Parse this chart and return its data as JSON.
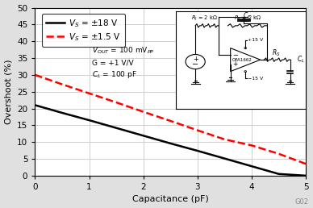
{
  "xlabel": "Capacitance (pF)",
  "ylabel": "Overshoot (%)",
  "xlim": [
    0,
    5
  ],
  "ylim": [
    0,
    50
  ],
  "xticks": [
    0,
    1,
    2,
    3,
    4,
    5
  ],
  "yticks": [
    0,
    5,
    10,
    15,
    20,
    25,
    30,
    35,
    40,
    45,
    50
  ],
  "line1": {
    "x": [
      0,
      0.5,
      1,
      1.5,
      2,
      2.5,
      3,
      3.5,
      4,
      4.5,
      5
    ],
    "y": [
      21,
      18.7,
      16.5,
      14.2,
      11.9,
      9.6,
      7.4,
      5.1,
      2.8,
      0.5,
      0
    ],
    "color": "#000000",
    "linestyle": "-",
    "linewidth": 1.8,
    "label": "$V_S$ = ±18 V"
  },
  "line2": {
    "x": [
      0,
      0.5,
      1,
      1.5,
      2,
      2.5,
      3,
      3.5,
      4,
      4.5,
      5
    ],
    "y": [
      30,
      27.2,
      24.5,
      21.8,
      19.0,
      16.3,
      13.5,
      10.8,
      9.0,
      6.5,
      3.5
    ],
    "color": "#ff0000",
    "linestyle": "--",
    "linewidth": 1.8,
    "label": "$V_S$ = ±1.5 V"
  },
  "grid_color": "#c8c8c8",
  "background_color": "#ffffff",
  "fig_background": "#e0e0e0",
  "watermark": "G02"
}
